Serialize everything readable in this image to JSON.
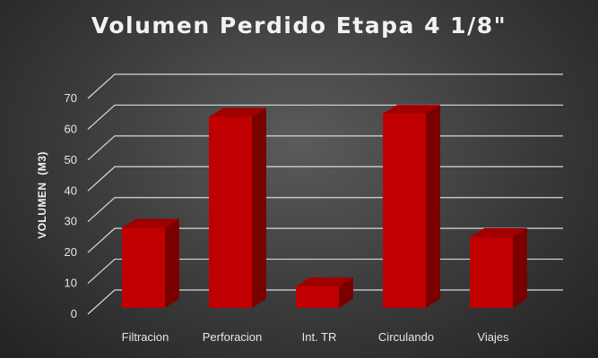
{
  "chart_data": {
    "type": "bar",
    "title": "Volumen Perdido Etapa 4 1/8\"",
    "xlabel": "",
    "ylabel": "VOLUMEN  (M3)",
    "categories": [
      "Filtracion",
      "Perforacion",
      "Int. TR",
      "Circulando",
      "Viajes"
    ],
    "values": [
      26,
      62,
      7,
      63,
      23
    ],
    "ylim": [
      0,
      70
    ],
    "yticks": [
      0,
      10,
      20,
      30,
      40,
      50,
      60,
      70
    ],
    "grid": true,
    "legend": "none",
    "bar_color": "#c00000"
  }
}
